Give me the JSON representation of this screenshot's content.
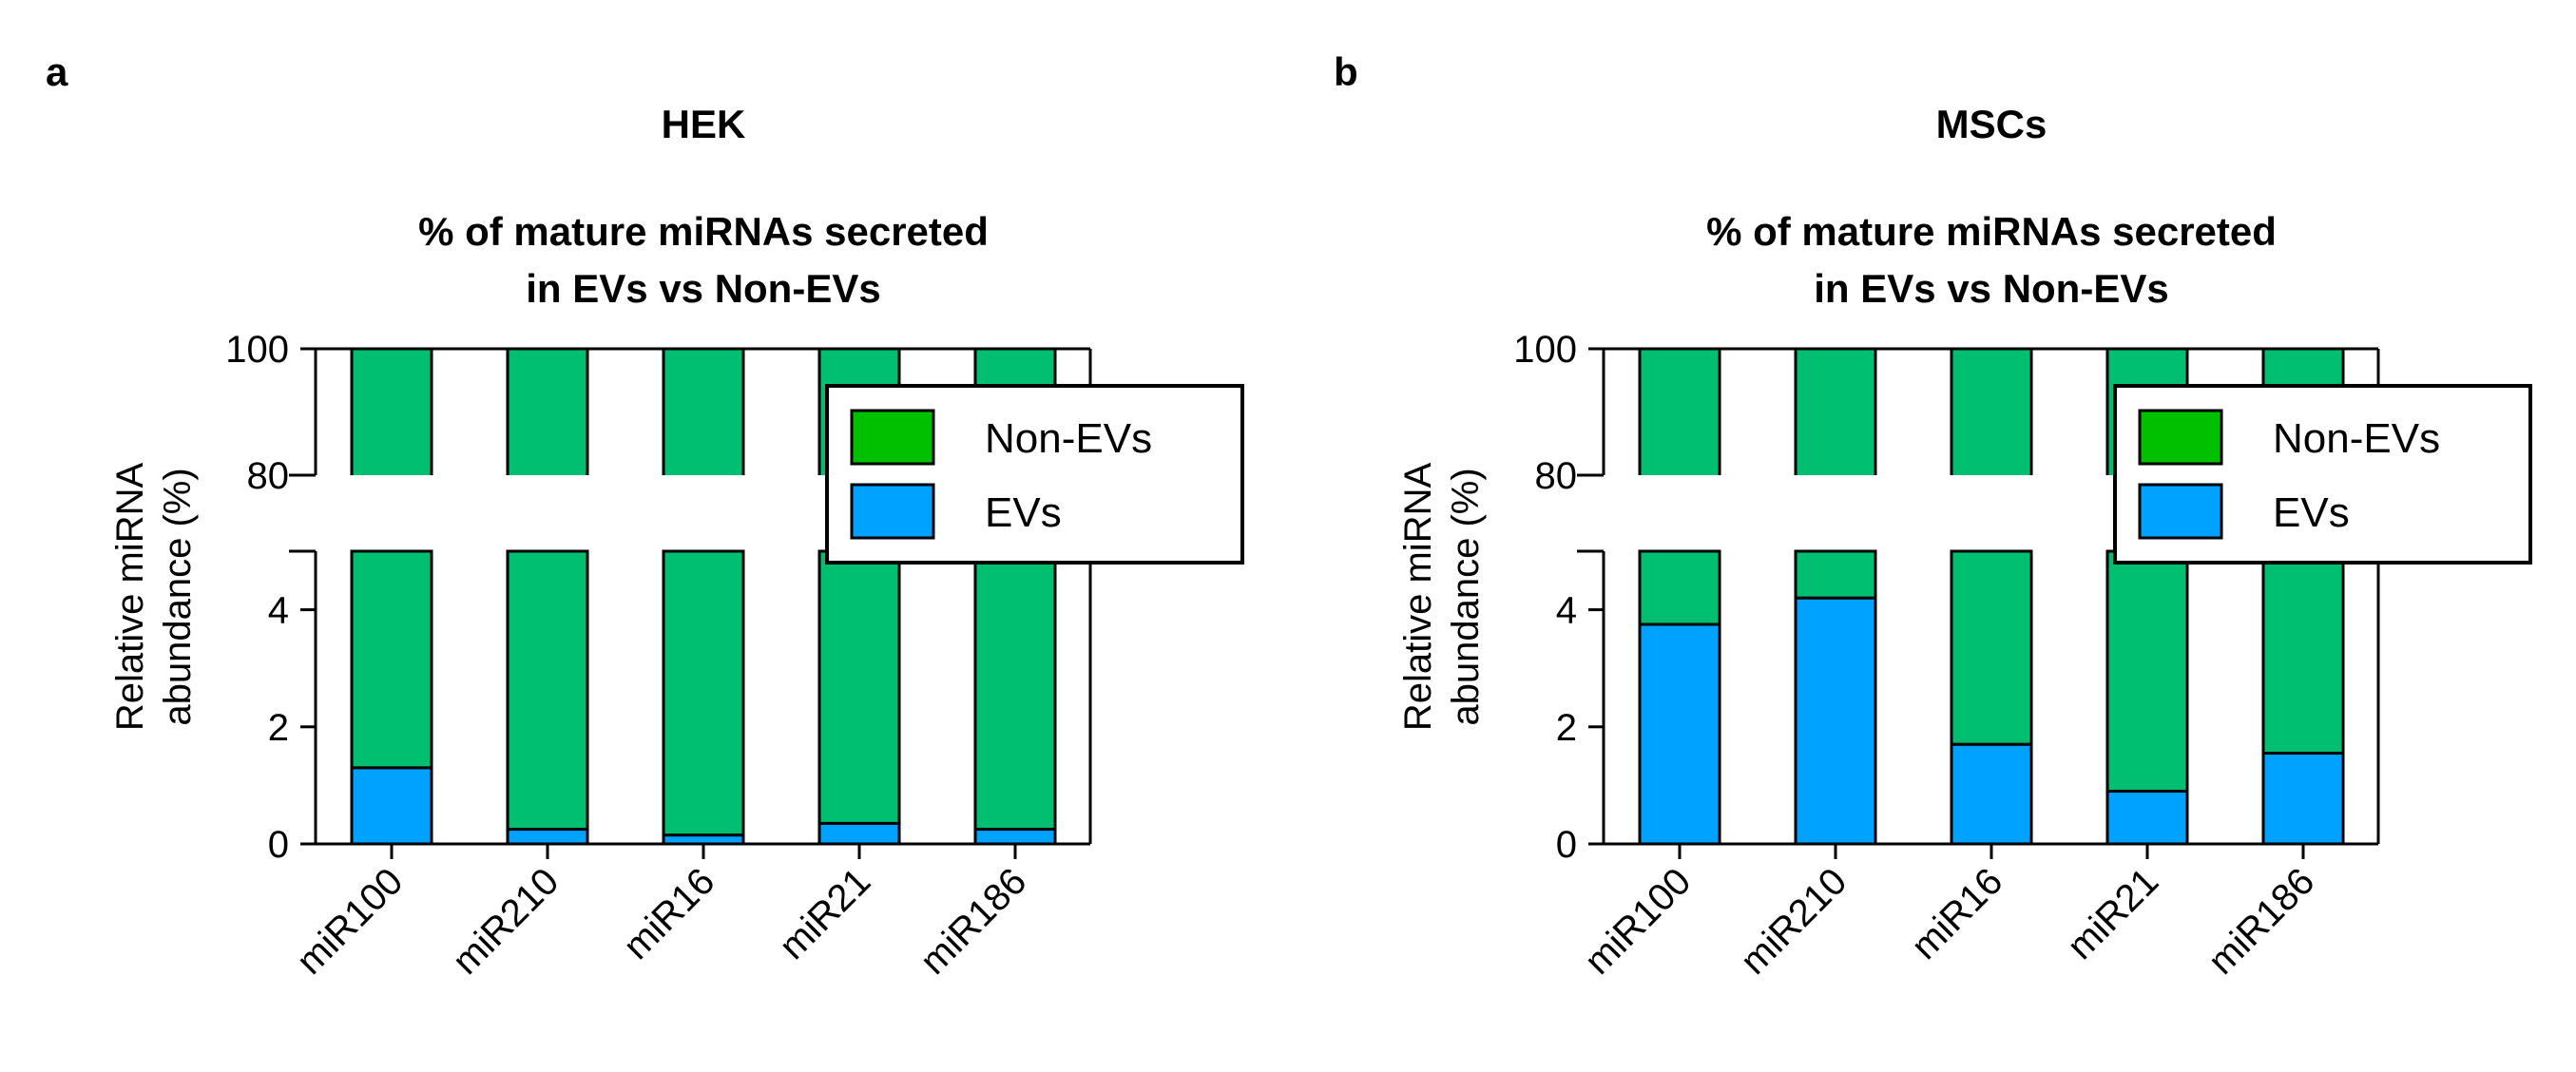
{
  "colors": {
    "evs": "#00A2FF",
    "non_evs": "#00BF70",
    "legend_non_evs": "#00C000",
    "axis": "#000000"
  },
  "chart_data": [
    {
      "panel_label": "a",
      "title": "HEK",
      "subtitle_line1": "% of mature miRNAs secreted",
      "subtitle_line2": "in EVs vs Non-EVs",
      "type": "bar",
      "stacked": true,
      "ylabel_line1": "Relative miRNA",
      "ylabel_line2": "abundance (%)",
      "y_axis_broken": true,
      "lower_segment_ylim": [
        0,
        5
      ],
      "upper_segment_ylim": [
        80,
        100
      ],
      "lower_ticks": [
        "0",
        "2",
        "4"
      ],
      "upper_ticks": [
        "80",
        "100"
      ],
      "categories": [
        "miR100",
        "miR210",
        "miR16",
        "miR21",
        "miR186"
      ],
      "series": [
        {
          "name": "EVs",
          "values": [
            1.3,
            0.25,
            0.15,
            0.35,
            0.25
          ]
        },
        {
          "name": "Non-EVs",
          "values": [
            98.7,
            99.75,
            99.85,
            99.65,
            99.75
          ]
        }
      ],
      "legend": [
        "Non-EVs",
        "EVs"
      ],
      "legend_position": "top-right"
    },
    {
      "panel_label": "b",
      "title": "MSCs",
      "subtitle_line1": "% of mature miRNAs secreted",
      "subtitle_line2": "in EVs vs Non-EVs",
      "type": "bar",
      "stacked": true,
      "ylabel_line1": "Relative miRNA",
      "ylabel_line2": "abundance (%)",
      "y_axis_broken": true,
      "lower_segment_ylim": [
        0,
        5
      ],
      "upper_segment_ylim": [
        80,
        100
      ],
      "lower_ticks": [
        "0",
        "2",
        "4"
      ],
      "upper_ticks": [
        "80",
        "100"
      ],
      "categories": [
        "miR100",
        "miR210",
        "miR16",
        "miR21",
        "miR186"
      ],
      "series": [
        {
          "name": "EVs",
          "values": [
            3.75,
            4.2,
            1.7,
            0.9,
            1.55
          ]
        },
        {
          "name": "Non-EVs",
          "values": [
            96.25,
            95.8,
            98.3,
            99.1,
            98.45
          ]
        }
      ],
      "legend": [
        "Non-EVs",
        "EVs"
      ],
      "legend_position": "top-right"
    }
  ]
}
